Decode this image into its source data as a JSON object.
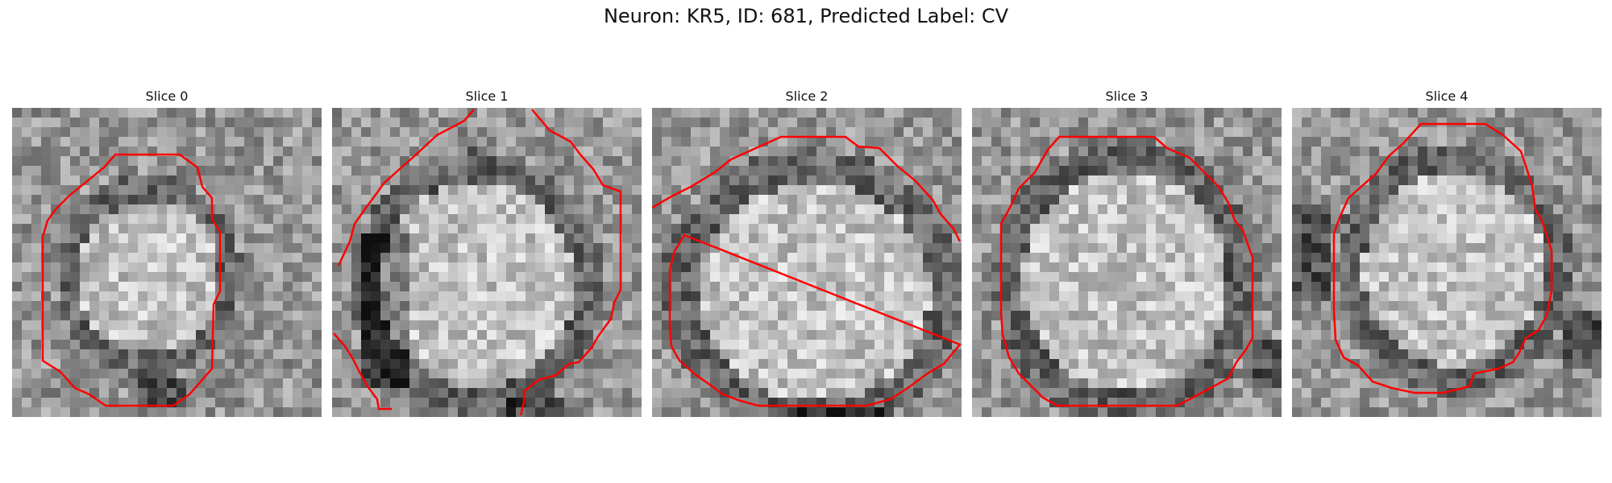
{
  "figure": {
    "title": "Neuron: KR5, ID: 681, Predicted Label: CV"
  },
  "contour_color": "#ff0000",
  "slices": [
    {
      "title": "Slice 0"
    },
    {
      "title": "Slice 1"
    },
    {
      "title": "Slice 2"
    },
    {
      "title": "Slice 3"
    },
    {
      "title": "Slice 4"
    }
  ]
}
